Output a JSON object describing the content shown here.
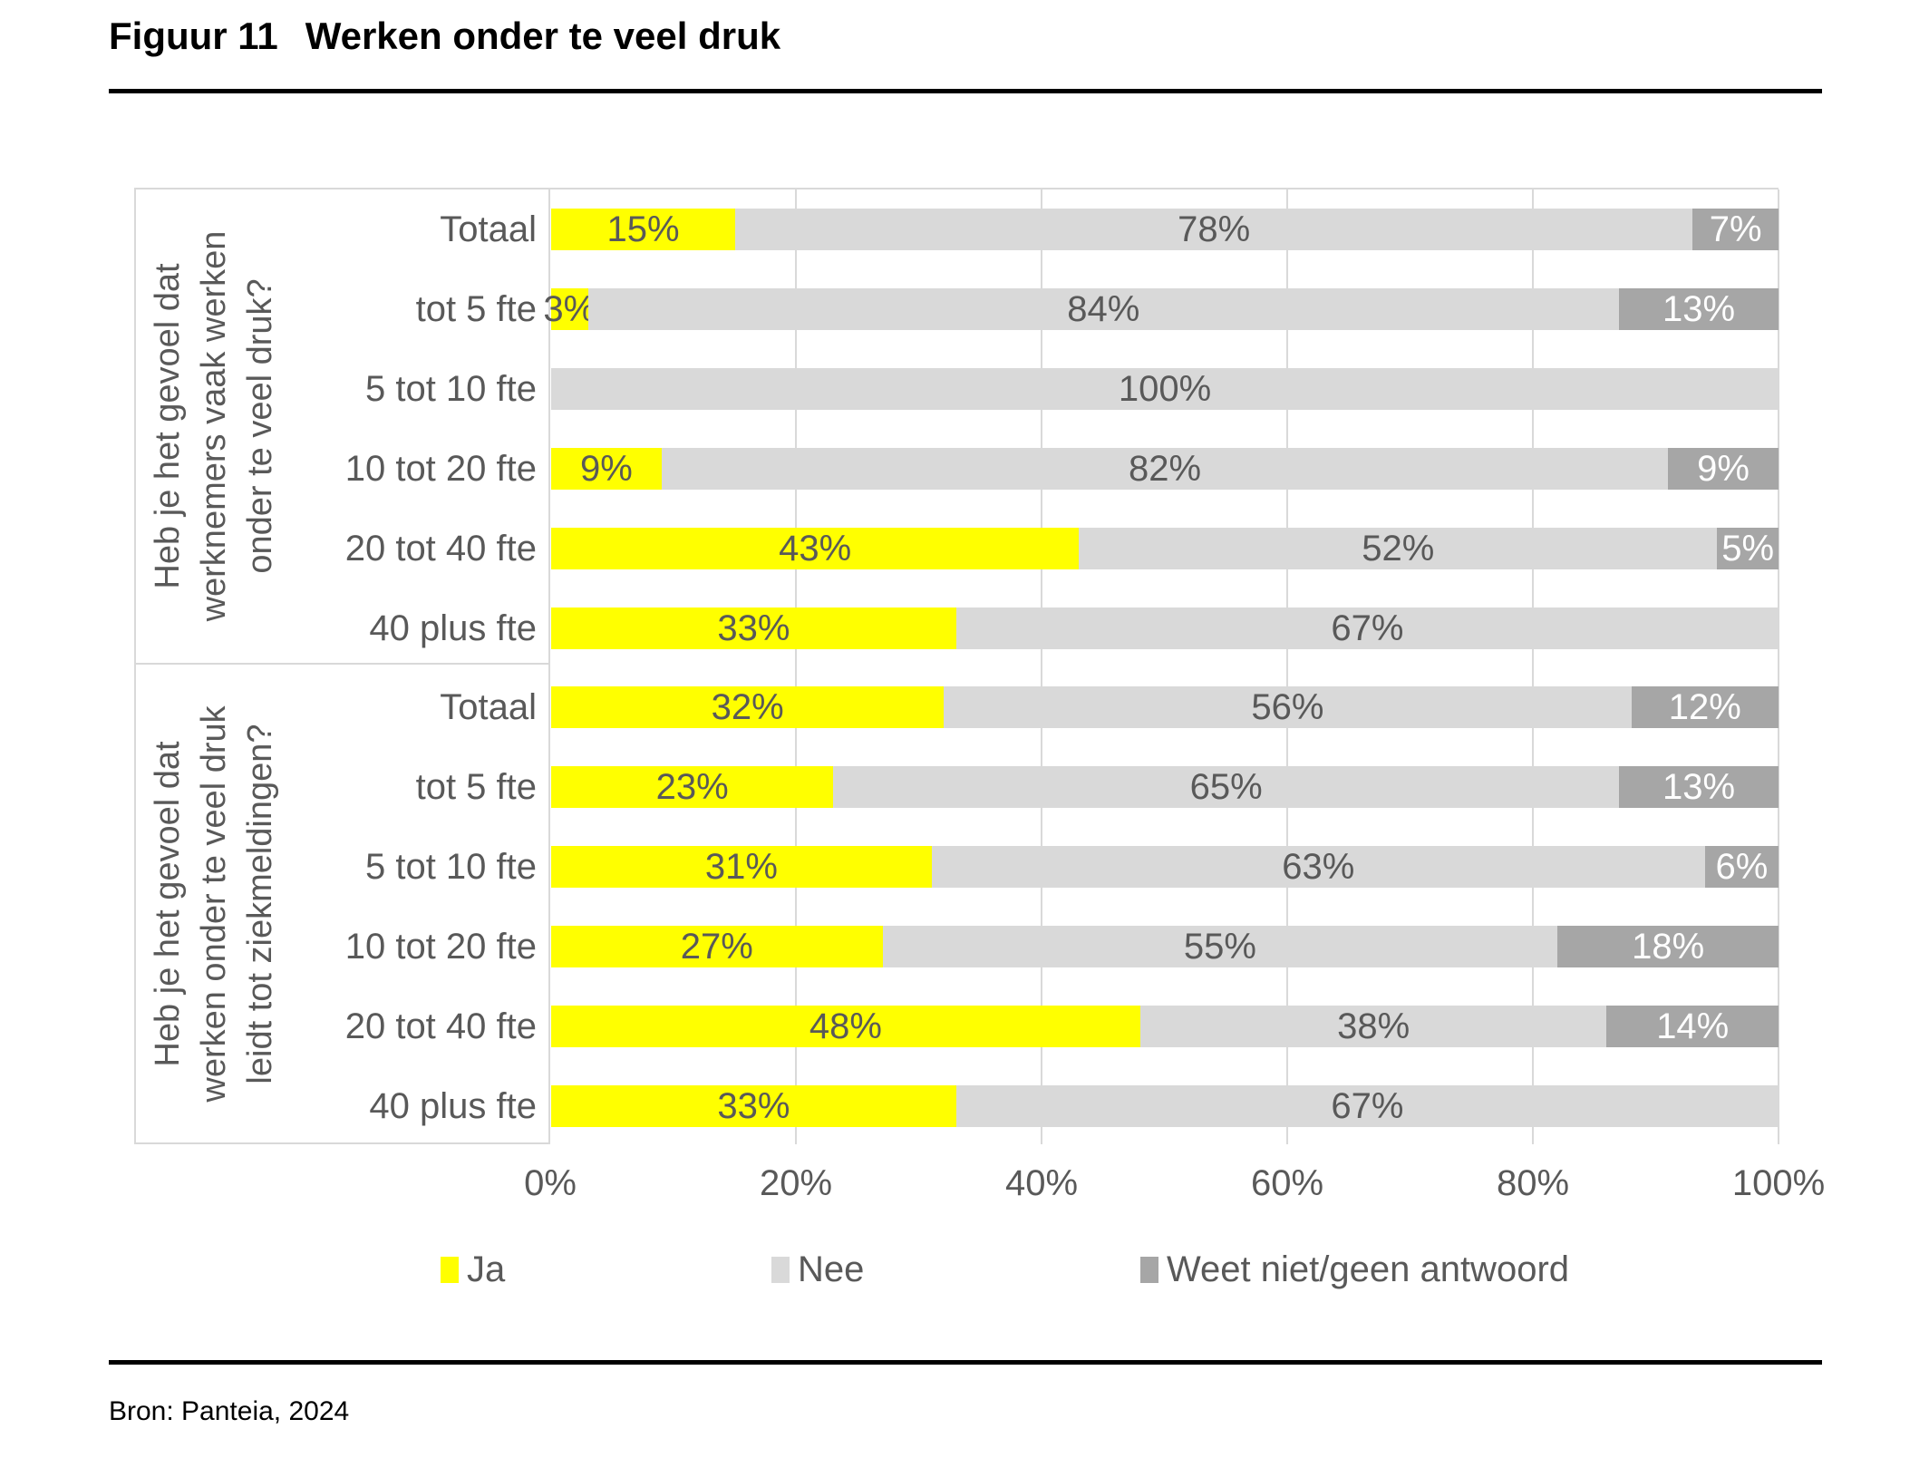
{
  "title": {
    "prefix": "Figuur 11",
    "text": "Werken onder te veel druk"
  },
  "source_note": "Bron: Panteia, 2024",
  "x_axis": {
    "ticks": [
      "0%",
      "20%",
      "40%",
      "60%",
      "80%",
      "100%"
    ]
  },
  "legend": [
    {
      "key": "ja",
      "label": "Ja",
      "color": "#FFFF00"
    },
    {
      "key": "nee",
      "label": "Nee",
      "color": "#D9D9D9"
    },
    {
      "key": "weet",
      "label": "Weet niet/geen antwoord",
      "color": "#A6A6A6"
    }
  ],
  "colors": {
    "ja": "#FFFF00",
    "nee": "#D9D9D9",
    "weet": "#A6A6A6",
    "chart_text": "#595959",
    "label_on_dark": "#FFFFFF",
    "grid": "#D9D9D9",
    "rule": "#000000"
  },
  "chart_data": {
    "type": "bar",
    "orientation": "horizontal",
    "stacked": true,
    "value_format": "percent",
    "xlim": [
      0,
      100
    ],
    "grid": true,
    "legend_position": "bottom",
    "series_names": [
      "Ja",
      "Nee",
      "Weet niet/geen antwoord"
    ],
    "groups": [
      {
        "question": "Heb je het gevoel dat werknemers vaak werken onder te veel druk?",
        "question_lines": [
          "Heb je het gevoel dat",
          "werknemers vaak werken",
          "onder te veel druk?"
        ],
        "rows": [
          {
            "category": "Totaal",
            "values": {
              "ja": 15,
              "nee": 78,
              "weet": 7
            }
          },
          {
            "category": "tot 5 fte",
            "values": {
              "ja": 3,
              "nee": 84,
              "weet": 13
            }
          },
          {
            "category": "5 tot 10 fte",
            "values": {
              "ja": 0,
              "nee": 100,
              "weet": 0
            }
          },
          {
            "category": "10 tot 20 fte",
            "values": {
              "ja": 9,
              "nee": 82,
              "weet": 9
            }
          },
          {
            "category": "20 tot 40 fte",
            "values": {
              "ja": 43,
              "nee": 52,
              "weet": 5
            }
          },
          {
            "category": "40 plus fte",
            "values": {
              "ja": 33,
              "nee": 67,
              "weet": 0
            }
          }
        ]
      },
      {
        "question": "Heb je het gevoel dat werken onder te veel druk leidt tot ziekmeldingen?",
        "question_lines": [
          "Heb je het gevoel dat",
          "werken onder te veel druk",
          "leidt tot ziekmeldingen?"
        ],
        "rows": [
          {
            "category": "Totaal",
            "values": {
              "ja": 32,
              "nee": 56,
              "weet": 12
            }
          },
          {
            "category": "tot 5 fte",
            "values": {
              "ja": 23,
              "nee": 65,
              "weet": 13
            }
          },
          {
            "category": "5 tot 10 fte",
            "values": {
              "ja": 31,
              "nee": 63,
              "weet": 6
            }
          },
          {
            "category": "10 tot 20 fte",
            "values": {
              "ja": 27,
              "nee": 55,
              "weet": 18
            }
          },
          {
            "category": "20 tot 40 fte",
            "values": {
              "ja": 48,
              "nee": 38,
              "weet": 14
            }
          },
          {
            "category": "40 plus fte",
            "values": {
              "ja": 33,
              "nee": 67,
              "weet": 0
            }
          }
        ]
      }
    ]
  }
}
